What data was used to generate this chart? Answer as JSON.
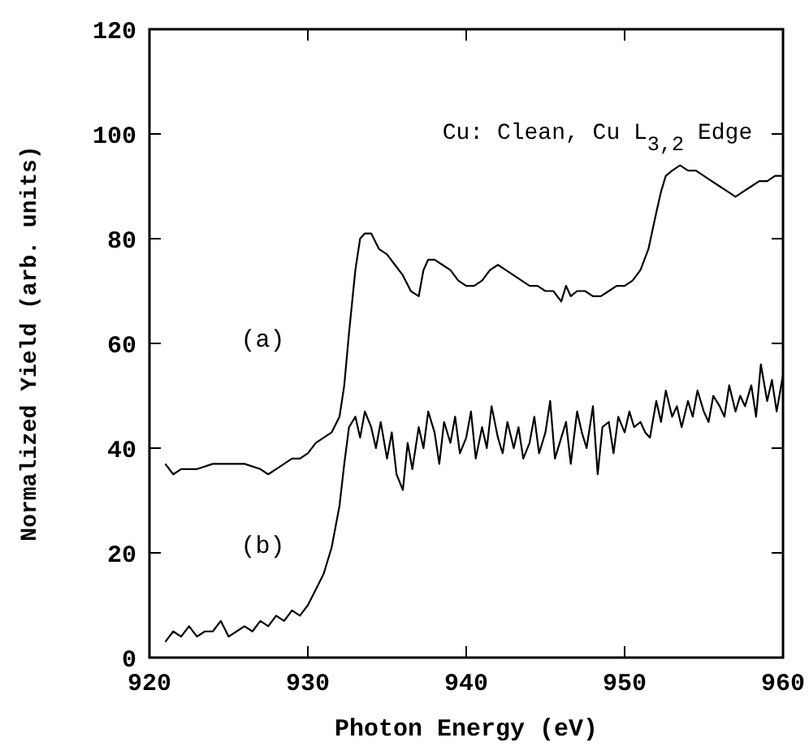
{
  "chart_data": {
    "type": "line",
    "xlabel": "Photon Energy (eV)",
    "ylabel": "Normalized Yield (arb. units)",
    "annotations": [
      "Cu: Clean, Cu L$_{3,2}$ Edge"
    ],
    "xlim": [
      920,
      960
    ],
    "ylim": [
      0,
      120
    ],
    "xticks": [
      920,
      930,
      940,
      950,
      960
    ],
    "yticks": [
      0,
      20,
      40,
      60,
      80,
      100,
      120
    ],
    "grid": false,
    "marker": "none",
    "line_style": "solid",
    "series": [
      {
        "name": "(a)",
        "color": "#000000",
        "x": [
          921,
          921.5,
          922,
          923,
          924,
          925,
          926,
          927,
          927.5,
          928,
          928.5,
          929,
          929.5,
          930,
          930.5,
          931,
          931.5,
          932,
          932.3,
          932.6,
          933,
          933.3,
          933.6,
          934,
          934.5,
          935,
          935.5,
          936,
          936.5,
          937,
          937.3,
          937.6,
          938,
          938.5,
          939,
          939.5,
          940,
          940.5,
          941,
          941.5,
          942,
          942.5,
          943,
          943.5,
          944,
          944.5,
          945,
          945.5,
          946,
          946.3,
          946.6,
          947,
          947.5,
          948,
          948.5,
          949,
          949.5,
          950,
          950.5,
          951,
          951.5,
          952,
          952.3,
          952.6,
          953,
          953.5,
          954,
          954.5,
          955,
          955.5,
          956,
          956.5,
          957,
          957.5,
          958,
          958.5,
          959,
          959.5,
          960
        ],
        "values": [
          37,
          35,
          36,
          36,
          37,
          37,
          37,
          36,
          35,
          36,
          37,
          38,
          38,
          39,
          41,
          42,
          43,
          46,
          52,
          62,
          74,
          80,
          81,
          81,
          78,
          77,
          75,
          73,
          70,
          69,
          74,
          76,
          76,
          75,
          74,
          72,
          71,
          71,
          72,
          74,
          75,
          74,
          73,
          72,
          71,
          71,
          70,
          70,
          68,
          71,
          69,
          70,
          70,
          69,
          69,
          70,
          71,
          71,
          72,
          74,
          78,
          85,
          89,
          92,
          93,
          94,
          93,
          93,
          92,
          91,
          90,
          89,
          88,
          89,
          90,
          91,
          91,
          92,
          92
        ]
      },
      {
        "name": "(b)",
        "color": "#000000",
        "x": [
          921,
          921.5,
          922,
          922.5,
          923,
          923.5,
          924,
          924.5,
          925,
          925.5,
          926,
          926.5,
          927,
          927.5,
          928,
          928.5,
          929,
          929.5,
          930,
          930.5,
          931,
          931.5,
          932,
          932.3,
          932.6,
          933,
          933.3,
          933.6,
          934,
          934.3,
          934.6,
          935,
          935.3,
          935.6,
          936,
          936.3,
          936.6,
          937,
          937.3,
          937.6,
          938,
          938.3,
          938.6,
          939,
          939.3,
          939.6,
          940,
          940.3,
          940.6,
          941,
          941.3,
          941.6,
          942,
          942.3,
          942.6,
          943,
          943.3,
          943.6,
          944,
          944.3,
          944.6,
          945,
          945.3,
          945.6,
          946,
          946.3,
          946.6,
          947,
          947.3,
          947.6,
          948,
          948.3,
          948.6,
          949,
          949.3,
          949.6,
          950,
          950.3,
          950.6,
          951,
          951.3,
          951.6,
          952,
          952.3,
          952.6,
          953,
          953.3,
          953.6,
          954,
          954.3,
          954.6,
          955,
          955.3,
          955.6,
          956,
          956.3,
          956.6,
          957,
          957.3,
          957.6,
          958,
          958.3,
          958.6,
          959,
          959.3,
          959.6,
          960
        ],
        "values": [
          3,
          5,
          4,
          6,
          4,
          5,
          5,
          7,
          4,
          5,
          6,
          5,
          7,
          6,
          8,
          7,
          9,
          8,
          10,
          13,
          16,
          21,
          29,
          37,
          44,
          46,
          42,
          47,
          44,
          40,
          45,
          38,
          43,
          35,
          32,
          41,
          36,
          44,
          40,
          47,
          43,
          37,
          45,
          41,
          46,
          39,
          42,
          47,
          38,
          44,
          40,
          48,
          42,
          39,
          45,
          40,
          44,
          38,
          41,
          46,
          39,
          43,
          49,
          38,
          42,
          45,
          37,
          47,
          43,
          40,
          48,
          35,
          44,
          45,
          39,
          46,
          43,
          47,
          44,
          45,
          43,
          42,
          49,
          45,
          51,
          46,
          48,
          44,
          49,
          46,
          51,
          47,
          45,
          50,
          48,
          46,
          52,
          47,
          50,
          48,
          52,
          46,
          56,
          49,
          53,
          47,
          54
        ]
      }
    ]
  }
}
